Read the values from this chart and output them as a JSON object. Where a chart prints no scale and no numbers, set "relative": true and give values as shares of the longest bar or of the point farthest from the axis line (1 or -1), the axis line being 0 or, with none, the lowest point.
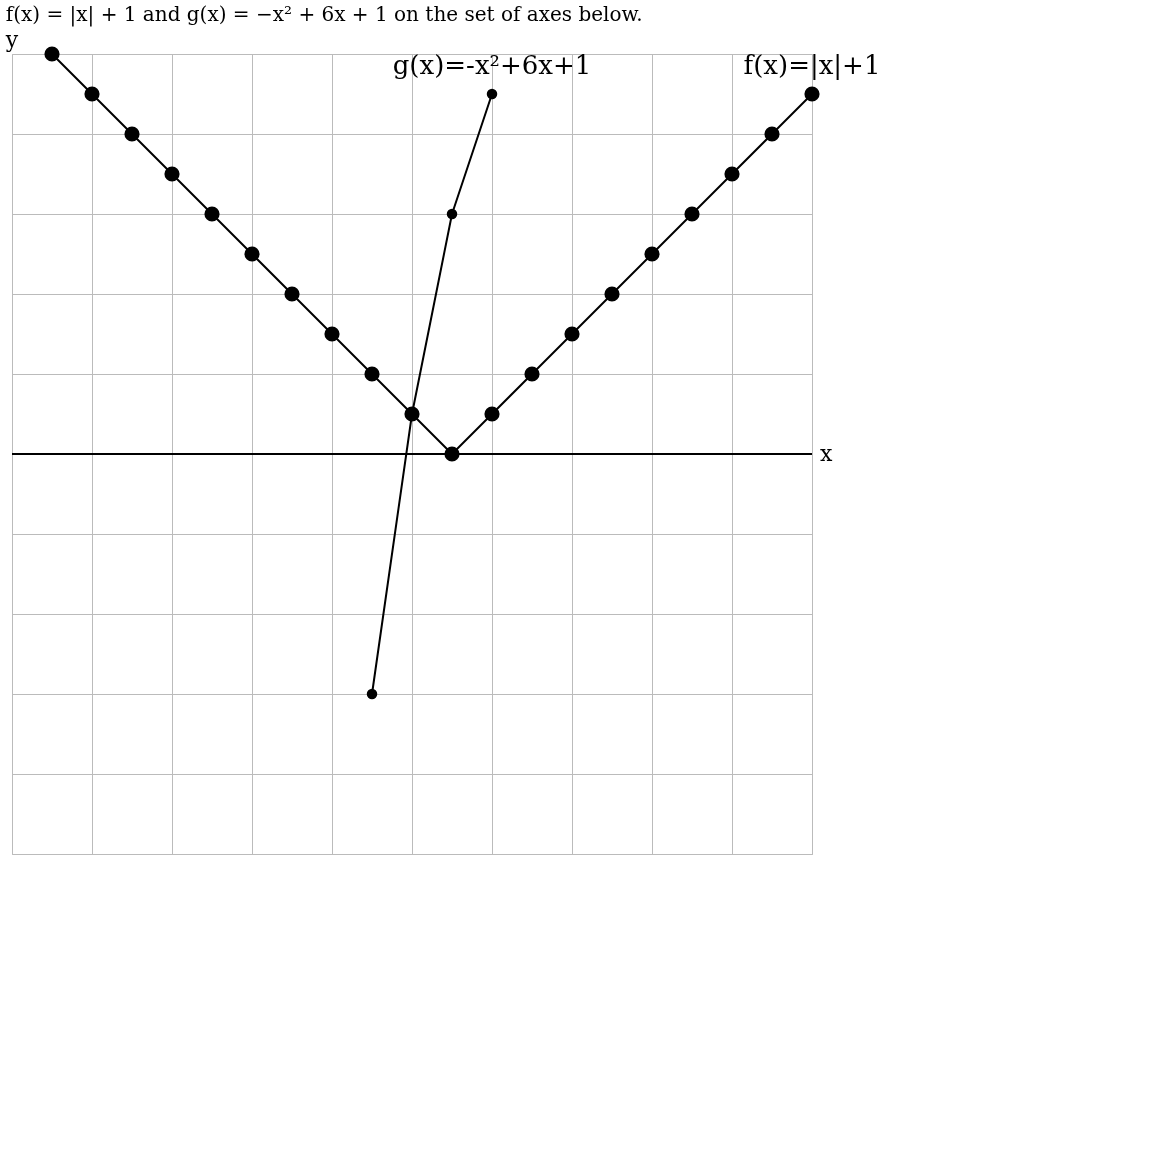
{
  "chart_data": {
    "type": "line",
    "title": "f(x) = |x| + 1 and g(x) = −x² + 6x + 1 on the set of axes below.",
    "xlabel": "x",
    "ylabel": "y",
    "relative": true,
    "categories": [
      null,
      null,
      null,
      null,
      null,
      null,
      null,
      null,
      null,
      null,
      null,
      null,
      null,
      null,
      null,
      null,
      null,
      null,
      null,
      null
    ],
    "series": [
      {
        "name": "f(x)=|x|+1",
        "color": "#000000",
        "values": [
          1,
          0.9,
          0.8,
          0.7,
          0.6,
          0.5,
          0.4,
          0.3,
          0.2,
          0.1,
          0,
          0.1,
          0.2,
          0.3,
          0.4,
          0.5,
          0.6,
          0.7,
          0.8,
          0.9
        ]
      },
      {
        "name": "g(x)=-x²+6x+1",
        "color": "#000000",
        "values": [
          null,
          null,
          null,
          null,
          null,
          null,
          null,
          null,
          -0.6,
          0.1,
          0.6,
          0.9,
          null,
          null,
          null,
          null,
          null,
          null,
          null,
          null
        ]
      }
    ],
    "marker": "circle",
    "grid": true
  }
}
